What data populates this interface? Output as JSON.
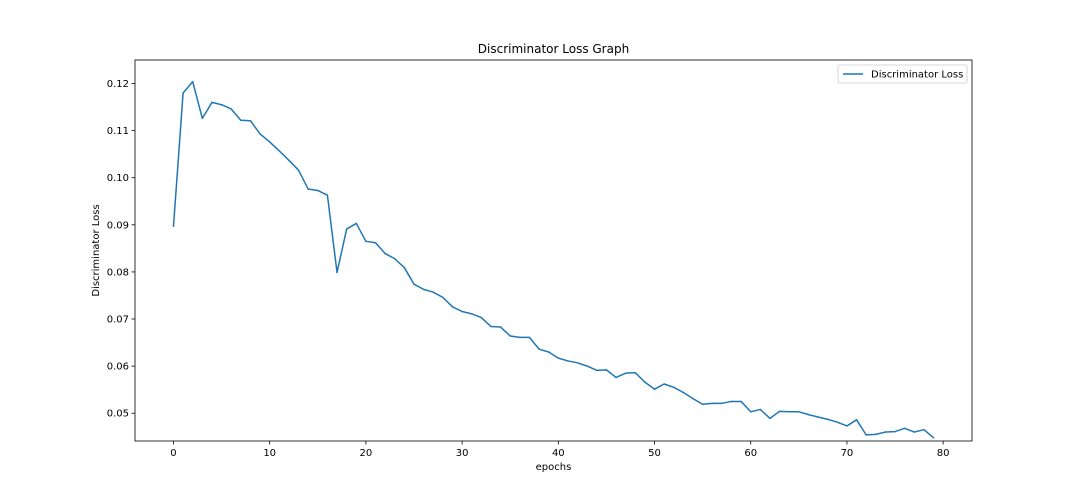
{
  "chart_data": {
    "type": "line",
    "title": "Discriminator Loss Graph",
    "xlabel": "epochs",
    "ylabel": "Discriminator Loss",
    "xlim": [
      -4,
      83
    ],
    "ylim": [
      0.0441,
      0.125
    ],
    "xticks": [
      0,
      10,
      20,
      30,
      40,
      50,
      60,
      70,
      80
    ],
    "yticks": [
      0.05,
      0.06,
      0.07,
      0.08,
      0.09,
      0.1,
      0.11,
      0.12
    ],
    "ytick_labels": [
      "0.05",
      "0.06",
      "0.07",
      "0.08",
      "0.09",
      "0.10",
      "0.11",
      "0.12"
    ],
    "grid": false,
    "legend_position": "top-right",
    "series": [
      {
        "name": "Discriminator Loss",
        "color": "#1f77b4",
        "x": [
          0,
          1,
          2,
          3,
          4,
          5,
          6,
          7,
          8,
          9,
          10,
          11,
          12,
          13,
          14,
          15,
          16,
          17,
          18,
          19,
          20,
          21,
          22,
          23,
          24,
          25,
          26,
          27,
          28,
          29,
          30,
          31,
          32,
          33,
          34,
          35,
          36,
          37,
          38,
          39,
          40,
          41,
          42,
          43,
          44,
          45,
          46,
          47,
          48,
          49,
          50,
          51,
          52,
          53,
          54,
          55,
          56,
          57,
          58,
          59,
          60,
          61,
          62,
          63,
          64,
          65,
          66,
          67,
          68,
          69,
          70,
          71,
          72,
          73,
          74,
          75,
          76,
          77,
          78,
          79
        ],
        "y": [
          0.0897,
          0.118,
          0.1204,
          0.1126,
          0.116,
          0.1155,
          0.1146,
          0.1122,
          0.1121,
          0.1093,
          0.1076,
          0.1057,
          0.1037,
          0.1016,
          0.0976,
          0.0973,
          0.0963,
          0.0799,
          0.0891,
          0.0903,
          0.0865,
          0.0862,
          0.0839,
          0.0828,
          0.0809,
          0.0774,
          0.0763,
          0.0757,
          0.0746,
          0.0726,
          0.0716,
          0.0711,
          0.0703,
          0.0684,
          0.0683,
          0.0664,
          0.0661,
          0.0661,
          0.0636,
          0.063,
          0.0617,
          0.0611,
          0.0607,
          0.06,
          0.0591,
          0.0592,
          0.0576,
          0.0585,
          0.0586,
          0.0566,
          0.0551,
          0.0562,
          0.0555,
          0.0544,
          0.0531,
          0.0519,
          0.0521,
          0.0521,
          0.0525,
          0.0525,
          0.0503,
          0.0508,
          0.0489,
          0.0504,
          0.0503,
          0.0503,
          0.0497,
          0.0492,
          0.0487,
          0.0481,
          0.0473,
          0.0486,
          0.0454,
          0.0455,
          0.046,
          0.0461,
          0.0468,
          0.046,
          0.0465,
          0.0448
        ]
      }
    ]
  }
}
